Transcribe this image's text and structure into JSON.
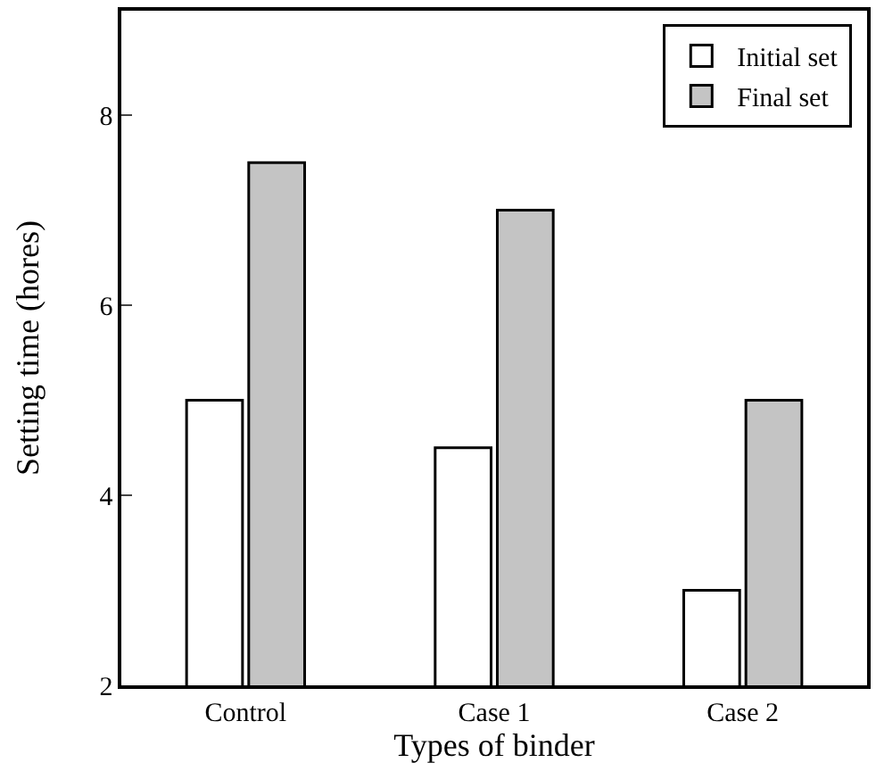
{
  "chart_data": {
    "type": "bar",
    "xlabel": "Types of binder",
    "ylabel": "Setting time (hores)",
    "categories": [
      "Control",
      "Case 1",
      "Case 2"
    ],
    "series": [
      {
        "name": "Initial set",
        "color": "#ffffff",
        "values": [
          5,
          4.5,
          3
        ]
      },
      {
        "name": "Final set",
        "color": "#c4c4c4",
        "values": [
          7.5,
          7,
          5
        ]
      }
    ],
    "ylim": [
      2,
      9.1
    ],
    "yticks": [
      2,
      4,
      6,
      8
    ],
    "grid": false,
    "legend": "top right"
  }
}
